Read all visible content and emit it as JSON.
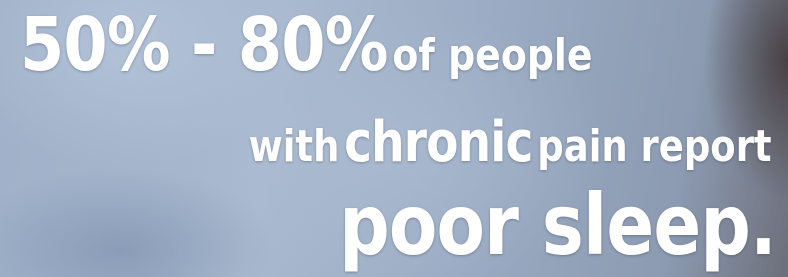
{
  "lines": [
    {
      "segments": [
        {
          "text": "50% - 80%"
        },
        {
          "text": "of people"
        }
      ]
    },
    {
      "segments": [
        {
          "text": "with"
        },
        {
          "text": "chronic"
        },
        {
          "text": "pain report"
        }
      ]
    },
    {
      "segments": [
        {
          "text": "poor sleep."
        }
      ]
    }
  ]
}
